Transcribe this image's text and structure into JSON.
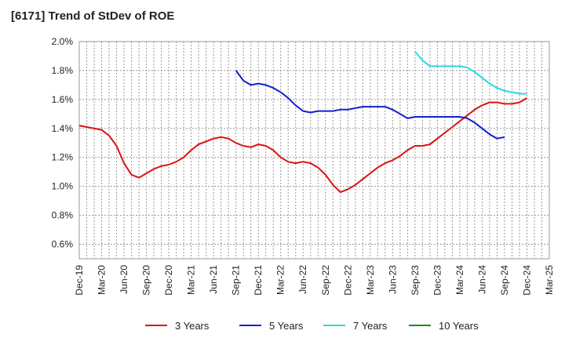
{
  "chart_data": {
    "type": "line",
    "title": "[6171]  Trend of StDev of ROE",
    "xlabel": "",
    "ylabel": "",
    "x_ticks": [
      "Dec-19",
      "Mar-20",
      "Jun-20",
      "Sep-20",
      "Dec-20",
      "Mar-21",
      "Jun-21",
      "Sep-21",
      "Dec-21",
      "Mar-22",
      "Jun-22",
      "Sep-22",
      "Dec-22",
      "Mar-23",
      "Jun-23",
      "Sep-23",
      "Dec-23",
      "Mar-24",
      "Jun-24",
      "Sep-24",
      "Dec-24",
      "Mar-25"
    ],
    "y_ticks": [
      "0.6%",
      "0.8%",
      "1.0%",
      "1.2%",
      "1.4%",
      "1.6%",
      "1.8%",
      "2.0%"
    ],
    "ylim": [
      0.5,
      2.0
    ],
    "grid": true,
    "legend_position": "bottom",
    "series": [
      {
        "name": "3 Years",
        "color": "#dd1111",
        "start_index": 0,
        "values": [
          1.42,
          1.41,
          1.4,
          1.39,
          1.35,
          1.28,
          1.16,
          1.08,
          1.06,
          1.09,
          1.12,
          1.14,
          1.15,
          1.17,
          1.2,
          1.25,
          1.29,
          1.31,
          1.33,
          1.34,
          1.33,
          1.3,
          1.28,
          1.27,
          1.29,
          1.28,
          1.25,
          1.2,
          1.17,
          1.16,
          1.17,
          1.16,
          1.13,
          1.08,
          1.01,
          0.96,
          0.98,
          1.01,
          1.05,
          1.09,
          1.13,
          1.16,
          1.18,
          1.21,
          1.25,
          1.28,
          1.28,
          1.29,
          1.33,
          1.37,
          1.41,
          1.45,
          1.49,
          1.53,
          1.56,
          1.58,
          1.58,
          1.57,
          1.57,
          1.58,
          1.61
        ]
      },
      {
        "name": "5 Years",
        "color": "#1122cc",
        "start_index": 21,
        "values": [
          1.8,
          1.73,
          1.7,
          1.71,
          1.7,
          1.68,
          1.65,
          1.61,
          1.56,
          1.52,
          1.51,
          1.52,
          1.52,
          1.52,
          1.53,
          1.53,
          1.54,
          1.55,
          1.55,
          1.55,
          1.55,
          1.53,
          1.5,
          1.47,
          1.48,
          1.48,
          1.48,
          1.48,
          1.48,
          1.48,
          1.48,
          1.47,
          1.44,
          1.4,
          1.36,
          1.33,
          1.34
        ]
      },
      {
        "name": "7 Years",
        "color": "#22dddd",
        "start_index": 45,
        "values": [
          1.93,
          1.87,
          1.83,
          1.83,
          1.83,
          1.83,
          1.83,
          1.82,
          1.79,
          1.75,
          1.71,
          1.68,
          1.66,
          1.65,
          1.64,
          1.64
        ]
      },
      {
        "name": "10 Years",
        "color": "#228822",
        "start_index": 0,
        "values": []
      }
    ]
  }
}
